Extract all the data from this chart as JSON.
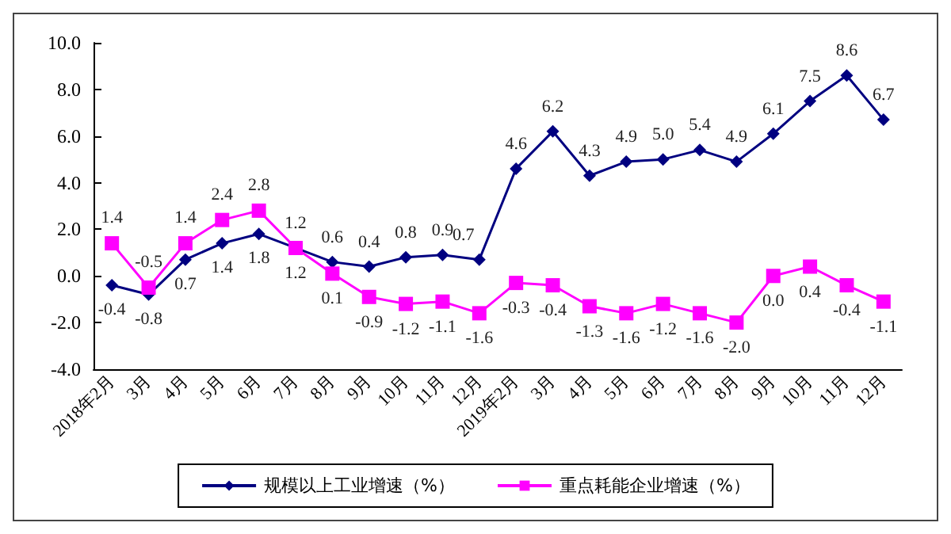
{
  "chart_data": {
    "type": "line",
    "categories": [
      "2018年2月",
      "3月",
      "4月",
      "5月",
      "6月",
      "7月",
      "8月",
      "9月",
      "10月",
      "11月",
      "12月",
      "2019年2月",
      "3月",
      "4月",
      "5月",
      "6月",
      "7月",
      "8月",
      "9月",
      "10月",
      "11月",
      "12月"
    ],
    "series": [
      {
        "name": "规模以上工业增速（%）",
        "color": "#000080",
        "marker": "diamond",
        "values": [
          -0.4,
          -0.8,
          0.7,
          1.4,
          1.8,
          1.2,
          0.6,
          0.4,
          0.8,
          0.9,
          0.7,
          4.6,
          6.2,
          4.3,
          4.9,
          5.0,
          5.4,
          4.9,
          6.1,
          7.5,
          8.6,
          6.7
        ],
        "value_labels": [
          "-0.4",
          "-0.8",
          "0.7",
          "1.4",
          "1.8",
          "1.2",
          "0.6",
          "0.4",
          "0.8",
          "0.9",
          "0.7",
          "4.6",
          "6.2",
          "4.3",
          "4.9",
          "5.0",
          "5.4",
          "4.9",
          "6.1",
          "7.5",
          "8.6",
          "6.7"
        ]
      },
      {
        "name": "重点耗能企业增速（%）",
        "color": "#ff00ff",
        "marker": "square",
        "values": [
          1.4,
          -0.5,
          1.4,
          2.4,
          2.8,
          1.2,
          0.1,
          -0.9,
          -1.2,
          -1.1,
          -1.6,
          -0.3,
          -0.4,
          -1.3,
          -1.6,
          -1.2,
          -1.6,
          -2.0,
          0.0,
          0.4,
          -0.4,
          -1.1
        ],
        "value_labels": [
          "1.4",
          "-0.5",
          "1.4",
          "2.4",
          "2.8",
          "1.2",
          "0.1",
          "-0.9",
          "-1.2",
          "-1.1",
          "-1.6",
          "-0.3",
          "-0.4",
          "-1.3",
          "-1.6",
          "-1.2",
          "-1.6",
          "-2.0",
          "0.0",
          "0.4",
          "-0.4",
          "-1.1"
        ]
      }
    ],
    "ylim": [
      -4,
      10
    ],
    "yticks": [
      {
        "value": -4,
        "label": "-4.0"
      },
      {
        "value": -2,
        "label": "-2.0"
      },
      {
        "value": 0,
        "label": "0.0"
      },
      {
        "value": 2,
        "label": "2.0"
      },
      {
        "value": 4,
        "label": "4.0"
      },
      {
        "value": 6,
        "label": "6.0"
      },
      {
        "value": 8,
        "label": "8.0"
      },
      {
        "value": 10,
        "label": "10.0"
      }
    ],
    "grid": false,
    "legend": "bottom",
    "line_style": "solid"
  }
}
